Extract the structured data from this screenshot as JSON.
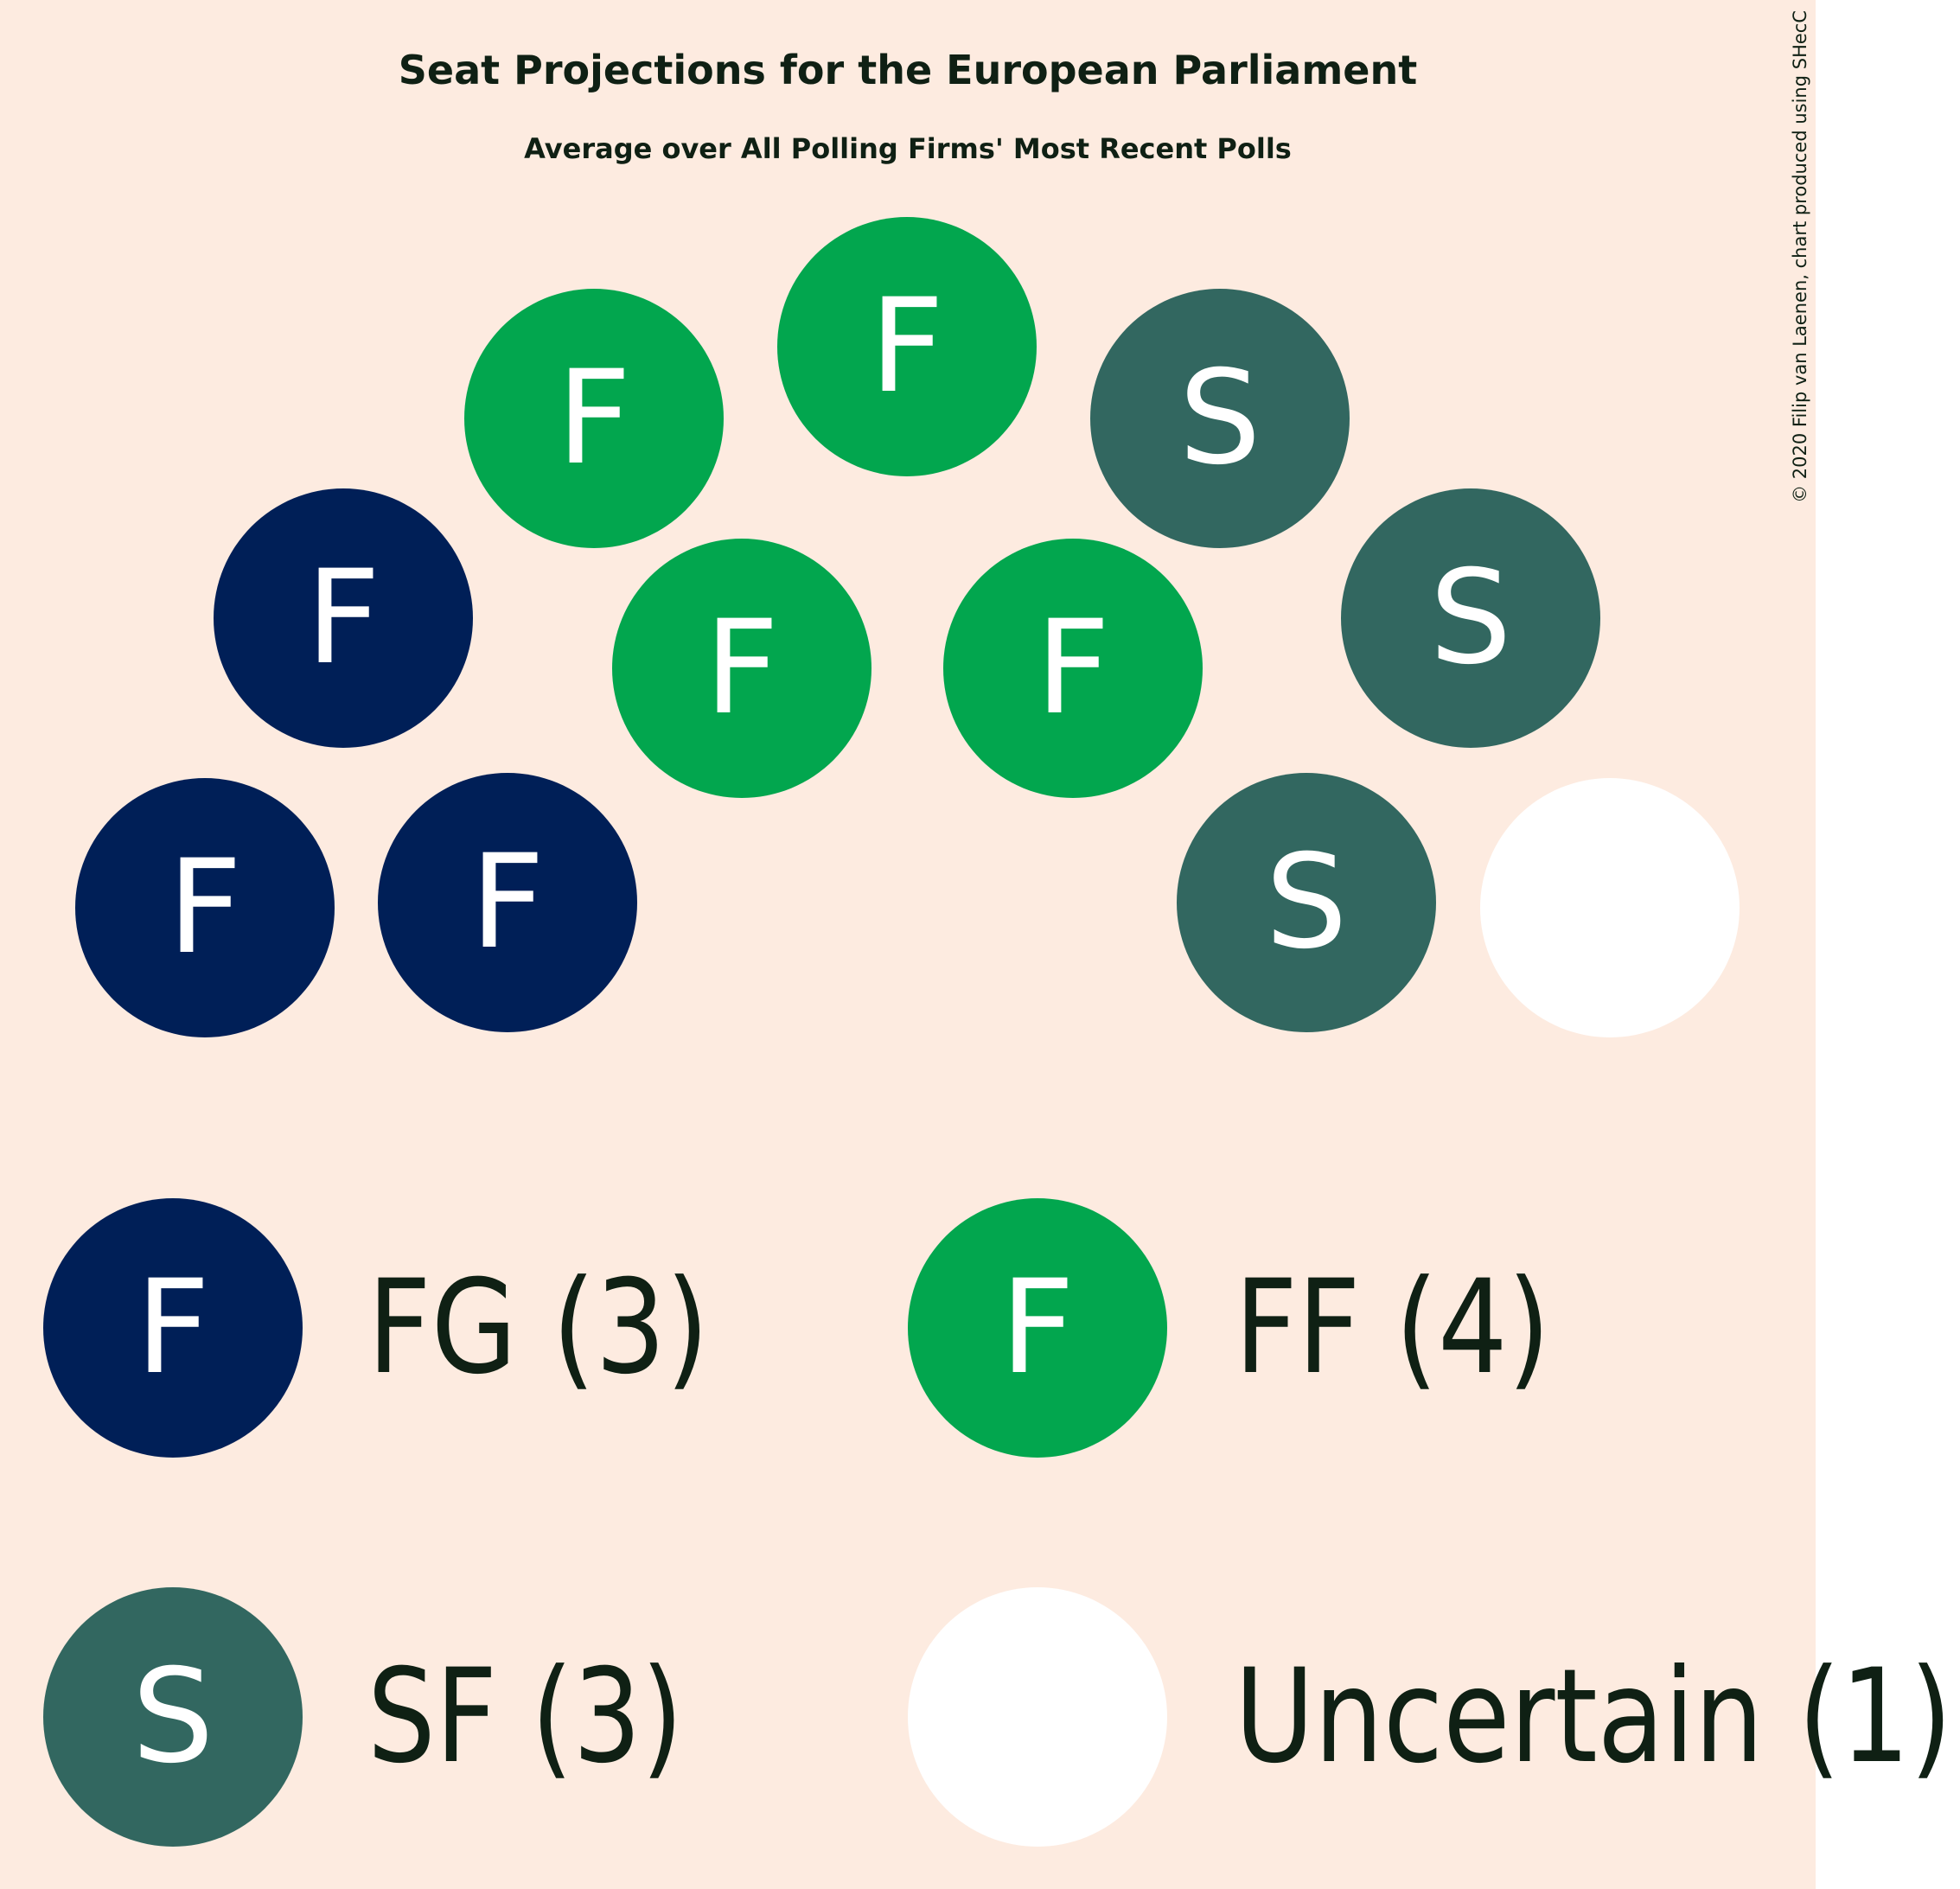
{
  "chart_data": {
    "type": "parliament",
    "title": "Seat Projections for the European Parliament",
    "subtitle": "Average over All Polling Firms' Most Recent Polls",
    "credit": "© 2020 Filip van Laenen, chart produced using SHecC",
    "colors": {
      "background": "#fdebe0",
      "FG": "#001f57",
      "FF": "#02a64e",
      "SF": "#326760",
      "Uncertain": "#ffffff"
    },
    "seats": [
      {
        "party": "FG",
        "letter": "F"
      },
      {
        "party": "FG",
        "letter": "F"
      },
      {
        "party": "FG",
        "letter": "F"
      },
      {
        "party": "FF",
        "letter": "F"
      },
      {
        "party": "FF",
        "letter": "F"
      },
      {
        "party": "FF",
        "letter": "F"
      },
      {
        "party": "FF",
        "letter": "F"
      },
      {
        "party": "SF",
        "letter": "S"
      },
      {
        "party": "SF",
        "letter": "S"
      },
      {
        "party": "SF",
        "letter": "S"
      },
      {
        "party": "Uncertain",
        "letter": ""
      }
    ],
    "legend": [
      {
        "party": "FG",
        "letter": "F",
        "label": "FG (3)",
        "seats": 3
      },
      {
        "party": "FF",
        "letter": "F",
        "label": "FF (4)",
        "seats": 4
      },
      {
        "party": "SF",
        "letter": "S",
        "label": "SF (3)",
        "seats": 3
      },
      {
        "party": "Uncertain",
        "letter": "",
        "label": "Uncertain (1)",
        "seats": 1
      }
    ]
  }
}
